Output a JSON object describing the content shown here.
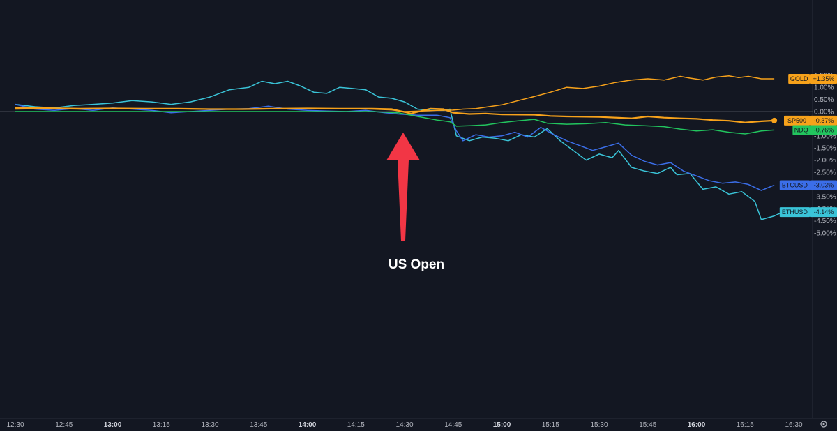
{
  "chart_data": {
    "type": "line",
    "title": "",
    "xlabel": "",
    "ylabel": "",
    "ylim": [
      -5.0,
      1.6
    ],
    "grid": false,
    "y_ticks": [
      "1.50%",
      "1.00%",
      "0.50%",
      "0.00%",
      "-0.50%",
      "-1.00%",
      "-1.50%",
      "-2.00%",
      "-2.50%",
      "-3.00%",
      "-3.50%",
      "-4.00%",
      "-4.50%",
      "-5.00%"
    ],
    "x_ticks": [
      {
        "label": "12:30",
        "t": 750,
        "major": false
      },
      {
        "label": "12:45",
        "t": 765,
        "major": false
      },
      {
        "label": "13:00",
        "t": 780,
        "major": true
      },
      {
        "label": "13:15",
        "t": 795,
        "major": false
      },
      {
        "label": "13:30",
        "t": 810,
        "major": false
      },
      {
        "label": "13:45",
        "t": 825,
        "major": false
      },
      {
        "label": "14:00",
        "t": 840,
        "major": true
      },
      {
        "label": "14:15",
        "t": 855,
        "major": false
      },
      {
        "label": "14:30",
        "t": 870,
        "major": false
      },
      {
        "label": "14:45",
        "t": 885,
        "major": false
      },
      {
        "label": "15:00",
        "t": 900,
        "major": true
      },
      {
        "label": "15:15",
        "t": 915,
        "major": false
      },
      {
        "label": "15:30",
        "t": 930,
        "major": false
      },
      {
        "label": "15:45",
        "t": 945,
        "major": false
      },
      {
        "label": "16:00",
        "t": 960,
        "major": true
      },
      {
        "label": "16:15",
        "t": 975,
        "major": false
      },
      {
        "label": "16:30",
        "t": 990,
        "major": false
      }
    ],
    "x_unit": "minutes since 00:00",
    "series": [
      {
        "name": "GOLD",
        "label": "+1.35%",
        "color": "#f7a21b",
        "points": [
          [
            750,
            0.1
          ],
          [
            760,
            0.12
          ],
          [
            770,
            0.1
          ],
          [
            780,
            0.12
          ],
          [
            790,
            0.12
          ],
          [
            800,
            0.11
          ],
          [
            810,
            0.1
          ],
          [
            820,
            0.1
          ],
          [
            830,
            0.11
          ],
          [
            840,
            0.12
          ],
          [
            850,
            0.12
          ],
          [
            860,
            0.1
          ],
          [
            866,
            0.07
          ],
          [
            870,
            0.0
          ],
          [
            875,
            0.02
          ],
          [
            880,
            0.05
          ],
          [
            885,
            0.06
          ],
          [
            888,
            0.1
          ],
          [
            892,
            0.12
          ],
          [
            896,
            0.2
          ],
          [
            900,
            0.28
          ],
          [
            905,
            0.45
          ],
          [
            910,
            0.62
          ],
          [
            915,
            0.8
          ],
          [
            920,
            1.0
          ],
          [
            925,
            0.95
          ],
          [
            930,
            1.05
          ],
          [
            935,
            1.2
          ],
          [
            940,
            1.3
          ],
          [
            945,
            1.35
          ],
          [
            950,
            1.3
          ],
          [
            955,
            1.45
          ],
          [
            958,
            1.38
          ],
          [
            962,
            1.3
          ],
          [
            966,
            1.42
          ],
          [
            970,
            1.47
          ],
          [
            973,
            1.4
          ],
          [
            976,
            1.45
          ],
          [
            980,
            1.35
          ],
          [
            984,
            1.35
          ]
        ]
      },
      {
        "name": "SP500",
        "label": "-0.37%",
        "color": "#f7a21b",
        "points": [
          [
            750,
            0.15
          ],
          [
            760,
            0.14
          ],
          [
            770,
            0.12
          ],
          [
            780,
            0.13
          ],
          [
            790,
            0.12
          ],
          [
            800,
            0.12
          ],
          [
            810,
            0.1
          ],
          [
            820,
            0.1
          ],
          [
            830,
            0.12
          ],
          [
            840,
            0.13
          ],
          [
            850,
            0.12
          ],
          [
            860,
            0.12
          ],
          [
            866,
            0.1
          ],
          [
            872,
            -0.08
          ],
          [
            878,
            0.12
          ],
          [
            882,
            0.1
          ],
          [
            885,
            -0.05
          ],
          [
            890,
            -0.1
          ],
          [
            895,
            -0.08
          ],
          [
            900,
            -0.12
          ],
          [
            910,
            -0.13
          ],
          [
            915,
            -0.18
          ],
          [
            920,
            -0.2
          ],
          [
            930,
            -0.22
          ],
          [
            940,
            -0.28
          ],
          [
            945,
            -0.2
          ],
          [
            950,
            -0.25
          ],
          [
            955,
            -0.28
          ],
          [
            960,
            -0.3
          ],
          [
            965,
            -0.35
          ],
          [
            970,
            -0.38
          ],
          [
            975,
            -0.45
          ],
          [
            980,
            -0.4
          ],
          [
            984,
            -0.37
          ]
        ]
      },
      {
        "name": "NDQ",
        "label": "-0.76%",
        "color": "#22c55e",
        "points": [
          [
            750,
            0.0
          ],
          [
            760,
            0.0
          ],
          [
            770,
            0.0
          ],
          [
            780,
            0.0
          ],
          [
            790,
            0.0
          ],
          [
            800,
            0.0
          ],
          [
            810,
            0.0
          ],
          [
            820,
            0.0
          ],
          [
            830,
            0.0
          ],
          [
            840,
            0.0
          ],
          [
            850,
            0.0
          ],
          [
            860,
            0.0
          ],
          [
            868,
            -0.05
          ],
          [
            874,
            -0.2
          ],
          [
            880,
            -0.35
          ],
          [
            884,
            -0.42
          ],
          [
            886,
            -0.6
          ],
          [
            890,
            -0.58
          ],
          [
            895,
            -0.55
          ],
          [
            900,
            -0.45
          ],
          [
            905,
            -0.38
          ],
          [
            910,
            -0.32
          ],
          [
            914,
            -0.48
          ],
          [
            920,
            -0.52
          ],
          [
            926,
            -0.5
          ],
          [
            932,
            -0.45
          ],
          [
            938,
            -0.55
          ],
          [
            944,
            -0.58
          ],
          [
            950,
            -0.62
          ],
          [
            955,
            -0.72
          ],
          [
            960,
            -0.8
          ],
          [
            965,
            -0.75
          ],
          [
            970,
            -0.85
          ],
          [
            975,
            -0.92
          ],
          [
            980,
            -0.8
          ],
          [
            984,
            -0.76
          ]
        ]
      },
      {
        "name": "BTCUSD",
        "label": "-3.03%",
        "color": "#3b6ee8",
        "points": [
          [
            750,
            0.3
          ],
          [
            756,
            0.1
          ],
          [
            762,
            0.05
          ],
          [
            768,
            0.12
          ],
          [
            774,
            0.05
          ],
          [
            780,
            0.15
          ],
          [
            786,
            0.1
          ],
          [
            792,
            0.05
          ],
          [
            798,
            -0.05
          ],
          [
            804,
            0.0
          ],
          [
            810,
            0.05
          ],
          [
            816,
            0.1
          ],
          [
            822,
            0.12
          ],
          [
            828,
            0.22
          ],
          [
            834,
            0.1
          ],
          [
            840,
            0.05
          ],
          [
            846,
            0.02
          ],
          [
            852,
            0.0
          ],
          [
            858,
            0.05
          ],
          [
            864,
            -0.05
          ],
          [
            868,
            -0.1
          ],
          [
            874,
            -0.15
          ],
          [
            880,
            -0.15
          ],
          [
            884,
            -0.25
          ],
          [
            886,
            -0.8
          ],
          [
            888,
            -1.2
          ],
          [
            892,
            -0.95
          ],
          [
            896,
            -1.05
          ],
          [
            900,
            -1.0
          ],
          [
            904,
            -0.85
          ],
          [
            908,
            -1.05
          ],
          [
            912,
            -0.65
          ],
          [
            916,
            -0.95
          ],
          [
            920,
            -1.2
          ],
          [
            924,
            -1.4
          ],
          [
            928,
            -1.6
          ],
          [
            932,
            -1.45
          ],
          [
            936,
            -1.3
          ],
          [
            940,
            -1.8
          ],
          [
            944,
            -2.05
          ],
          [
            948,
            -2.2
          ],
          [
            952,
            -2.1
          ],
          [
            956,
            -2.45
          ],
          [
            960,
            -2.65
          ],
          [
            964,
            -2.85
          ],
          [
            968,
            -2.95
          ],
          [
            972,
            -2.9
          ],
          [
            976,
            -3.0
          ],
          [
            980,
            -3.25
          ],
          [
            984,
            -3.03
          ]
        ]
      },
      {
        "name": "ETHUSD",
        "label": "-4.14%",
        "color": "#3ac4d8",
        "points": [
          [
            750,
            0.3
          ],
          [
            756,
            0.2
          ],
          [
            762,
            0.15
          ],
          [
            768,
            0.25
          ],
          [
            774,
            0.3
          ],
          [
            780,
            0.35
          ],
          [
            786,
            0.45
          ],
          [
            792,
            0.4
          ],
          [
            798,
            0.3
          ],
          [
            804,
            0.4
          ],
          [
            810,
            0.6
          ],
          [
            816,
            0.9
          ],
          [
            822,
            1.0
          ],
          [
            826,
            1.25
          ],
          [
            830,
            1.15
          ],
          [
            834,
            1.25
          ],
          [
            838,
            1.05
          ],
          [
            842,
            0.8
          ],
          [
            846,
            0.75
          ],
          [
            850,
            1.0
          ],
          [
            854,
            0.95
          ],
          [
            858,
            0.9
          ],
          [
            862,
            0.6
          ],
          [
            866,
            0.55
          ],
          [
            870,
            0.4
          ],
          [
            874,
            0.1
          ],
          [
            878,
            0.05
          ],
          [
            882,
            0.05
          ],
          [
            884,
            0.1
          ],
          [
            886,
            -1.0
          ],
          [
            890,
            -1.2
          ],
          [
            894,
            -1.05
          ],
          [
            898,
            -1.1
          ],
          [
            902,
            -1.2
          ],
          [
            906,
            -0.95
          ],
          [
            910,
            -1.05
          ],
          [
            914,
            -0.7
          ],
          [
            918,
            -1.2
          ],
          [
            922,
            -1.6
          ],
          [
            926,
            -2.0
          ],
          [
            930,
            -1.75
          ],
          [
            934,
            -1.9
          ],
          [
            936,
            -1.6
          ],
          [
            940,
            -2.3
          ],
          [
            944,
            -2.45
          ],
          [
            948,
            -2.55
          ],
          [
            952,
            -2.3
          ],
          [
            954,
            -2.6
          ],
          [
            958,
            -2.55
          ],
          [
            962,
            -3.2
          ],
          [
            966,
            -3.1
          ],
          [
            970,
            -3.4
          ],
          [
            974,
            -3.3
          ],
          [
            978,
            -3.7
          ],
          [
            980,
            -4.45
          ],
          [
            984,
            -4.3
          ],
          [
            988,
            -4.05
          ],
          [
            992,
            -4.14
          ]
        ]
      }
    ],
    "annotations": [
      {
        "text": "US Open",
        "t": 868
      }
    ]
  }
}
